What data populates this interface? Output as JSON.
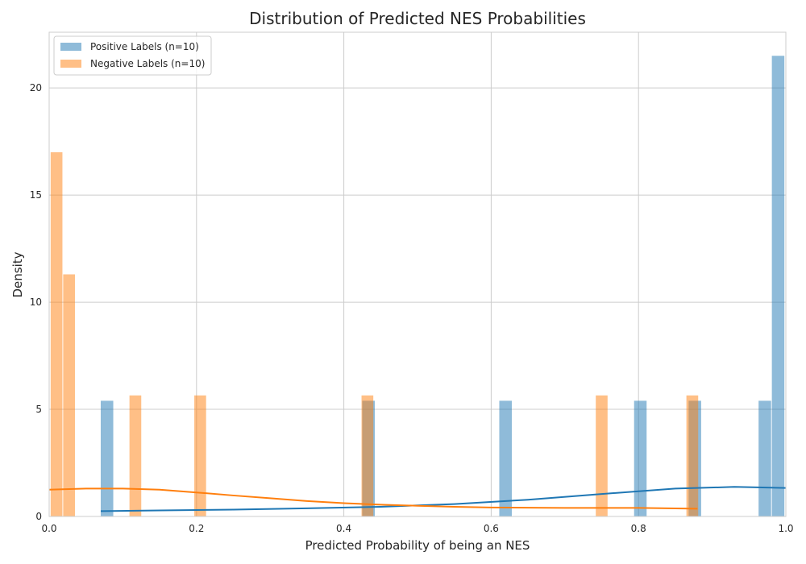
{
  "chart_data": {
    "type": "bar",
    "title": "Distribution of Predicted NES Probabilities",
    "xlabel": "Predicted Probability of being an NES",
    "ylabel": "Density",
    "xlim": [
      0.0,
      1.0
    ],
    "ylim": [
      0,
      22.6
    ],
    "xticks": [
      "0.0",
      "0.2",
      "0.4",
      "0.6",
      "0.8",
      "1.0"
    ],
    "yticks": [
      "0",
      "5",
      "10",
      "15",
      "20"
    ],
    "grid": true,
    "legend_position": "top-left",
    "series": [
      {
        "name": "Positive Labels (n=10)",
        "color": "#1f77b4",
        "bars": [
          {
            "x0": 0.07,
            "x1": 0.087,
            "density": 5.4
          },
          {
            "x0": 0.425,
            "x1": 0.442,
            "density": 5.4
          },
          {
            "x0": 0.611,
            "x1": 0.628,
            "density": 5.4
          },
          {
            "x0": 0.794,
            "x1": 0.811,
            "density": 5.4
          },
          {
            "x0": 0.868,
            "x1": 0.885,
            "density": 5.4
          },
          {
            "x0": 0.963,
            "x1": 0.98,
            "density": 5.4
          },
          {
            "x0": 0.981,
            "x1": 0.998,
            "density": 21.5
          }
        ],
        "kde": {
          "x": [
            0.07,
            0.15,
            0.25,
            0.35,
            0.45,
            0.55,
            0.65,
            0.75,
            0.85,
            0.93,
            1.0
          ],
          "y": [
            0.25,
            0.28,
            0.32,
            0.38,
            0.45,
            0.58,
            0.78,
            1.05,
            1.3,
            1.38,
            1.33
          ]
        }
      },
      {
        "name": "Negative Labels (n=10)",
        "color": "#ff7f0e",
        "bars": [
          {
            "x0": 0.002,
            "x1": 0.018,
            "density": 17.0
          },
          {
            "x0": 0.019,
            "x1": 0.035,
            "density": 11.3
          },
          {
            "x0": 0.109,
            "x1": 0.125,
            "density": 5.65
          },
          {
            "x0": 0.197,
            "x1": 0.213,
            "density": 5.65
          },
          {
            "x0": 0.424,
            "x1": 0.44,
            "density": 5.65
          },
          {
            "x0": 0.742,
            "x1": 0.758,
            "density": 5.65
          },
          {
            "x0": 0.865,
            "x1": 0.881,
            "density": 5.65
          }
        ],
        "kde": {
          "x": [
            0.0,
            0.05,
            0.1,
            0.15,
            0.2,
            0.25,
            0.3,
            0.35,
            0.4,
            0.45,
            0.5,
            0.55,
            0.6,
            0.7,
            0.8,
            0.88
          ],
          "y": [
            1.25,
            1.3,
            1.3,
            1.25,
            1.12,
            0.98,
            0.85,
            0.72,
            0.62,
            0.55,
            0.5,
            0.45,
            0.42,
            0.4,
            0.4,
            0.36
          ]
        }
      }
    ]
  }
}
